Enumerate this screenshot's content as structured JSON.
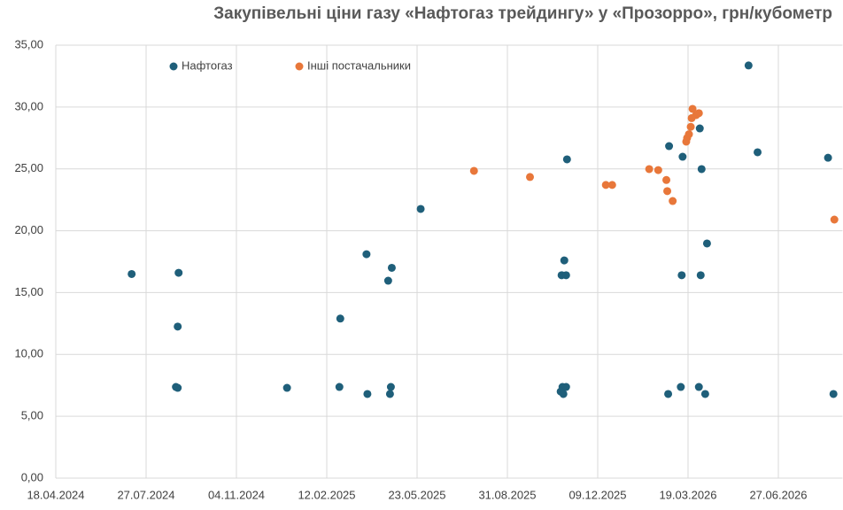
{
  "chart_data": {
    "type": "scatter",
    "title": "Закупівельні ціни газу «Нафтогаз трейдингу» у «Прозорро», грн/кубометр",
    "xlim": [
      "18.04.2024",
      "06.09.2026"
    ],
    "xticks": [
      "18.04.2024",
      "27.07.2024",
      "04.11.2024",
      "12.02.2025",
      "23.05.2025",
      "31.08.2025",
      "09.12.2025",
      "19.03.2026",
      "27.06.2026"
    ],
    "ylim": [
      0,
      35
    ],
    "yticks": [
      {
        "value": 0,
        "label": "0,00"
      },
      {
        "value": 5,
        "label": "5,00"
      },
      {
        "value": 10,
        "label": "10,00"
      },
      {
        "value": 15,
        "label": "15,00"
      },
      {
        "value": 20,
        "label": "20,00"
      },
      {
        "value": 25,
        "label": "25,00"
      },
      {
        "value": 30,
        "label": "30,00"
      },
      {
        "value": 35,
        "label": "35,00"
      }
    ],
    "grid": true,
    "legend": "top-left",
    "series": [
      {
        "name": "Нафтогаз",
        "color": "#1f5f7a",
        "x": [
          "11.07.2024",
          "01.09.2024",
          "31.08.2024",
          "29.08.2024",
          "31.08.2024",
          "30.12.2024",
          "27.02.2025",
          "26.02.2025",
          "28.03.2025",
          "29.03.2025",
          "21.04.2025",
          "25.04.2025",
          "24.04.2025",
          "23.04.2025",
          "27.05.2025",
          "31.10.2025",
          "04.11.2025",
          "29.10.2025",
          "01.11.2025",
          "30.10.2025",
          "04.11.2025",
          "02.11.2025",
          "05.11.2025",
          "26.02.2026",
          "13.03.2026",
          "12.03.2026",
          "11.03.2026",
          "25.02.2026",
          "01.04.2026",
          "03.04.2026",
          "02.04.2026",
          "31.03.2026",
          "07.04.2026",
          "09.04.2026",
          "25.05.2026",
          "04.06.2026",
          "21.08.2026",
          "27.08.2026"
        ],
        "values": [
          16.5,
          16.6,
          12.25,
          7.37,
          7.3,
          7.3,
          12.9,
          7.37,
          18.1,
          6.8,
          15.96,
          17.0,
          7.37,
          6.8,
          21.76,
          7.37,
          7.37,
          7.0,
          6.8,
          16.4,
          16.4,
          17.6,
          25.77,
          26.84,
          25.98,
          16.4,
          7.37,
          6.8,
          28.27,
          24.98,
          16.4,
          7.37,
          6.8,
          18.97,
          33.36,
          26.34,
          25.9,
          6.8
        ]
      },
      {
        "name": "Інші постачальники",
        "color": "#e8773a",
        "x": [
          "25.07.2025",
          "25.09.2025",
          "18.12.2025",
          "25.12.2025",
          "04.02.2026",
          "14.02.2026",
          "23.02.2026",
          "24.02.2026",
          "02.03.2026",
          "17.03.2026",
          "18.03.2026",
          "20.03.2026",
          "22.03.2026",
          "23.03.2026",
          "24.03.2026",
          "28.03.2026",
          "31.03.2026",
          "28.08.2026"
        ],
        "values": [
          24.84,
          24.34,
          23.7,
          23.7,
          24.98,
          24.9,
          24.1,
          23.2,
          22.4,
          27.2,
          27.5,
          27.8,
          28.4,
          29.1,
          29.85,
          29.35,
          29.5,
          20.9
        ]
      }
    ]
  }
}
